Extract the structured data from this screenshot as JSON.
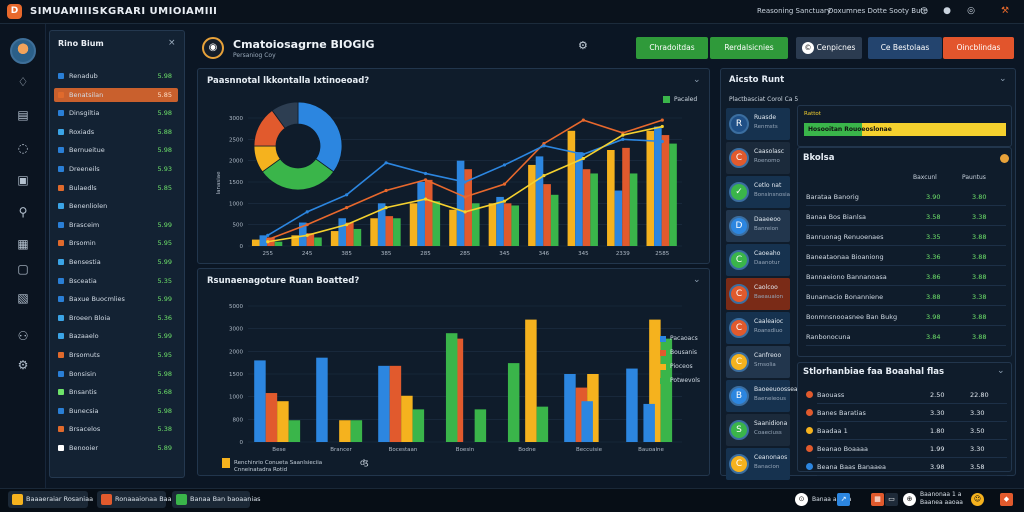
{
  "app": {
    "title": "SIMUAMIIISKGRARI UMIOIAMIII",
    "logo_glyph": "D"
  },
  "topbar": {
    "links": [
      "Reasoning Sanctuary",
      "Doxumnes Dotte Sooty Bute"
    ],
    "icons": [
      "clock-icon",
      "user-icon",
      "hammer-icon"
    ]
  },
  "rail": {
    "icons": [
      "diamond-icon",
      "layers-icon",
      "chat-icon",
      "bolt-icon",
      "search-icon",
      "document-icon",
      "image-icon",
      "file-icon",
      "people-icon",
      "settings-icon"
    ]
  },
  "sidebar": {
    "title": "Rino Bium",
    "close": "×",
    "items": [
      {
        "label": "Renadub",
        "value": "5.98",
        "color": "#2a7fd6"
      },
      {
        "label": "Benatsilan",
        "value": "5.85",
        "color": "#e06a2c",
        "selected": true
      },
      {
        "label": "Dinsgiltia",
        "value": "5.98",
        "color": "#2a7fd6"
      },
      {
        "label": "Roxiads",
        "value": "5.88",
        "color": "#3ba4e6"
      },
      {
        "label": "Bernueitue",
        "value": "5.98",
        "color": "#2a7fd6"
      },
      {
        "label": "Dreeneils",
        "value": "5.93",
        "color": "#2a7fd6"
      },
      {
        "label": "Bulaedls",
        "value": "5.85",
        "color": "#e06a2c"
      },
      {
        "label": "Benenliolen",
        "value": "",
        "color": "#3ba4e6"
      },
      {
        "label": "Brasceim",
        "value": "5.99",
        "color": "#2a7fd6"
      },
      {
        "label": "Brsomin",
        "value": "5.95",
        "color": "#e06a2c"
      },
      {
        "label": "Bensestia",
        "value": "5.99",
        "color": "#3ba4e6"
      },
      {
        "label": "Bsceatia",
        "value": "5.35",
        "color": "#2a7fd6"
      },
      {
        "label": "Baxue Buocmlies",
        "value": "5.99",
        "color": "#2a7fd6"
      },
      {
        "label": "Broeen Bloia",
        "value": "5.36",
        "color": "#3ba4e6"
      },
      {
        "label": "Bazaaelo",
        "value": "5.99",
        "color": "#3ba4e6"
      },
      {
        "label": "Brsomuts",
        "value": "5.95",
        "color": "#e06a2c"
      },
      {
        "label": "Bonsisin",
        "value": "5.98",
        "color": "#2a7fd6"
      },
      {
        "label": "Bnsantis",
        "value": "5.68",
        "color": "#6ee36a"
      },
      {
        "label": "Bunecsia",
        "value": "5.98",
        "color": "#2a7fd6"
      },
      {
        "label": "Brsacelos",
        "value": "5.38",
        "color": "#e06a2c"
      },
      {
        "label": "Benooier",
        "value": "5.89",
        "color": "#ffffff"
      }
    ]
  },
  "header": {
    "title": "Cmatoiosagrne BIOGIG",
    "subtitle": "Persaniog Coy",
    "buttons": [
      {
        "label": "Chradoitdas",
        "color": "#2f9a3a"
      },
      {
        "label": "Rerdalsicnies",
        "color": "#2f9a3a"
      },
      {
        "label": "Cenpicnes",
        "color": "#2b3b50"
      },
      {
        "label": "Ce Bestolaas",
        "color": "#23446e"
      },
      {
        "label": "Oincblindas",
        "color": "#e2552c"
      }
    ]
  },
  "chart1": {
    "title": "Paasnnotal lkkontalla Ixtinoeoad?",
    "legend": "Pacaled"
  },
  "chart2": {
    "title": "Rsunaenagoture Ruan Boatted?",
    "legend": [
      "Pacaoacs",
      "Bousanis",
      "Pioceos",
      "Potwevols"
    ],
    "footer": "Renchinrio Conueta Saanlsieciia Cnneinatadra Rotid"
  },
  "chart_data": [
    {
      "type": "bar",
      "title": "Paasnnotal lkkontalla Ixtinoeoad?",
      "xlabel": "",
      "ylabel": "Ianasiae",
      "categories": [
        "255",
        "245",
        "385",
        "385",
        "285",
        "285",
        "345",
        "346",
        "345",
        "2339",
        "2585"
      ],
      "yticks": [
        "3000",
        "2500",
        "2000",
        "1500",
        "1000",
        "500",
        "0"
      ],
      "ylim": [
        0,
        3000
      ],
      "series": [
        {
          "color": "#f5b21e",
          "values": [
            150,
            250,
            350,
            650,
            1000,
            850,
            1000,
            1900,
            2700,
            2250,
            2700
          ]
        },
        {
          "color": "#2c86e0",
          "values": [
            250,
            550,
            650,
            1000,
            1500,
            2000,
            1150,
            2100,
            2200,
            1300,
            2800
          ]
        },
        {
          "color": "#e15a2d",
          "values": [
            200,
            300,
            550,
            700,
            1550,
            1800,
            1000,
            1450,
            1800,
            2300,
            2600
          ]
        },
        {
          "color": "#3ab54a",
          "values": [
            100,
            200,
            400,
            650,
            1050,
            1000,
            950,
            1200,
            1700,
            1700,
            2400
          ]
        }
      ],
      "lines": [
        {
          "color": "#e8682c",
          "values": [
            150,
            500,
            900,
            1300,
            1550,
            1150,
            1450,
            2400,
            2950,
            2650,
            2950
          ]
        },
        {
          "color": "#2c86e0",
          "values": [
            250,
            800,
            1200,
            1950,
            1700,
            1500,
            1900,
            2350,
            2150,
            2500,
            2450
          ]
        },
        {
          "color": "#f5d12e",
          "values": [
            100,
            250,
            500,
            900,
            1100,
            800,
            1050,
            1650,
            2050,
            2600,
            2800
          ]
        }
      ],
      "donut": [
        {
          "color": "#2c86e0",
          "value": 35
        },
        {
          "color": "#3ab54a",
          "value": 30
        },
        {
          "color": "#f5b21e",
          "value": 10
        },
        {
          "color": "#e15a2d",
          "value": 15
        },
        {
          "color": "#2d3e52",
          "value": 10
        }
      ]
    },
    {
      "type": "bar",
      "title": "Rsunaenagoture Ruan Boatted?",
      "categories": [
        "Bese",
        "Brancer",
        "Bocestaan",
        "Boesin",
        "Bodne",
        "Beccuisie",
        "Bauoaine"
      ],
      "yticks": [
        "5000",
        "3000",
        "2000",
        "1500",
        "1000",
        "800",
        "0"
      ],
      "ylim": [
        0,
        5000
      ],
      "series": [
        {
          "color": "#2c86e0",
          "values": [
            3000,
            3100,
            2800,
            0,
            0,
            2500,
            2700
          ]
        },
        {
          "color": "#e15a2d",
          "values": [
            1800,
            0,
            2800,
            3800,
            0,
            2000,
            0
          ]
        },
        {
          "color": "#f5b21e",
          "values": [
            1500,
            800,
            1700,
            0,
            4500,
            2500,
            4500
          ]
        },
        {
          "color": "#3ab54a",
          "values": [
            800,
            800,
            1200,
            1200,
            1300,
            0,
            3800
          ]
        }
      ],
      "extra": [
        {
          "color": "#3ab54a",
          "values": [
            0,
            0,
            0,
            4000,
            2900,
            0,
            0
          ]
        },
        {
          "color": "#2c86e0",
          "values": [
            0,
            0,
            0,
            0,
            0,
            1500,
            1400
          ]
        }
      ]
    }
  ],
  "right": {
    "panel_title": "Aicsto Runt",
    "subtitle": "Plactbasciat Corol Ca 5",
    "bar_label_1": "Rattot",
    "bar_label_2": "Hosooitan Rouoeoslonae",
    "list": [
      {
        "l1": "Ruasde",
        "l2": "Renmsts",
        "color": "#1f4f86",
        "icon": "R"
      },
      {
        "l1": "Caasolasc",
        "l2": "Roenomo",
        "color": "#e15a2d",
        "icon": "C"
      },
      {
        "l1": "Cetlo nat",
        "l2": "Bonsinsnosia",
        "color": "#3ab54a",
        "icon": "✓"
      },
      {
        "l1": "Daaeeoo",
        "l2": "Banreion",
        "color": "#2c86e0",
        "icon": "D"
      },
      {
        "l1": "Caoeaho",
        "l2": "Daanotur",
        "color": "#3ab54a",
        "icon": "C"
      },
      {
        "l1": "Caolcoo",
        "l2": "Baeauaion",
        "color": "#e15a2d",
        "icon": "C"
      },
      {
        "l1": "Caaleaioc",
        "l2": "Roansdiuo",
        "color": "#e15a2d",
        "icon": "C"
      },
      {
        "l1": "Canfreoo",
        "l2": "Srnsolia",
        "color": "#f5b21e",
        "icon": "C"
      },
      {
        "l1": "Baoeeuoosseas",
        "l2": "Baeneieous",
        "color": "#2c86e0",
        "icon": "B"
      },
      {
        "l1": "Saanidiona",
        "l2": "Coaeciuss",
        "color": "#3ab54a",
        "icon": "S"
      },
      {
        "l1": "Ceanonaos",
        "l2": "Banacion",
        "color": "#f5b21e",
        "icon": "C"
      }
    ],
    "table1": {
      "title": "Bkolsa",
      "headers": [
        "Baxcunl",
        "Pauntus"
      ],
      "rows": [
        {
          "n": "Barataa Banorig",
          "v1": "3.90",
          "v2": "3.80"
        },
        {
          "n": "Banaa Bos Bianlsa",
          "v1": "3.58",
          "v2": "3.38"
        },
        {
          "n": "Banruonag Renuoenaes",
          "v1": "3.35",
          "v2": "3.88"
        },
        {
          "n": "Baneataonaa Bioaniong",
          "v1": "3.36",
          "v2": "3.88"
        },
        {
          "n": "Bannaeiono Bannanoasa",
          "v1": "3.86",
          "v2": "3.88"
        },
        {
          "n": "Bunamacio Bonanniene",
          "v1": "3.88",
          "v2": "3.38"
        },
        {
          "n": "Bonmnsnooasnee Ban Bukg",
          "v1": "3.98",
          "v2": "3.88"
        },
        {
          "n": "Ranbonocuna",
          "v1": "3.84",
          "v2": "3.88"
        }
      ]
    },
    "table2": {
      "title": "Stlorhanbiae faa Boaahal flas",
      "rows": [
        {
          "n": "Baouass",
          "v1": "2.50",
          "v2": "22.80",
          "color": "#e15a2d"
        },
        {
          "n": "Banes Baratias",
          "v1": "3.30",
          "v2": "3.30",
          "color": "#e15a2d"
        },
        {
          "n": "Baadaa 1",
          "v1": "1.80",
          "v2": "3.50",
          "color": "#f5b21e"
        },
        {
          "n": "Beanao Boaaaa",
          "v1": "1.99",
          "v2": "3.30",
          "color": "#e15a2d"
        },
        {
          "n": "Beana Baas Banaaea",
          "v1": "3.98",
          "v2": "3.58",
          "color": "#2c86e0"
        }
      ]
    }
  },
  "taskbar": {
    "tasks": [
      {
        "label": "Baaaeraiar Rosaniaa",
        "color": "#f5b21e"
      },
      {
        "label": "Ronaaaionaa Baananis",
        "color": "#e15a2d"
      },
      {
        "label": "Banaa Ban baoaanias",
        "color": "#3ab54a"
      }
    ],
    "tray_text": [
      "Banaa aaaaa",
      "Baanonaa 1 a",
      "Baanea aaoaa"
    ]
  }
}
